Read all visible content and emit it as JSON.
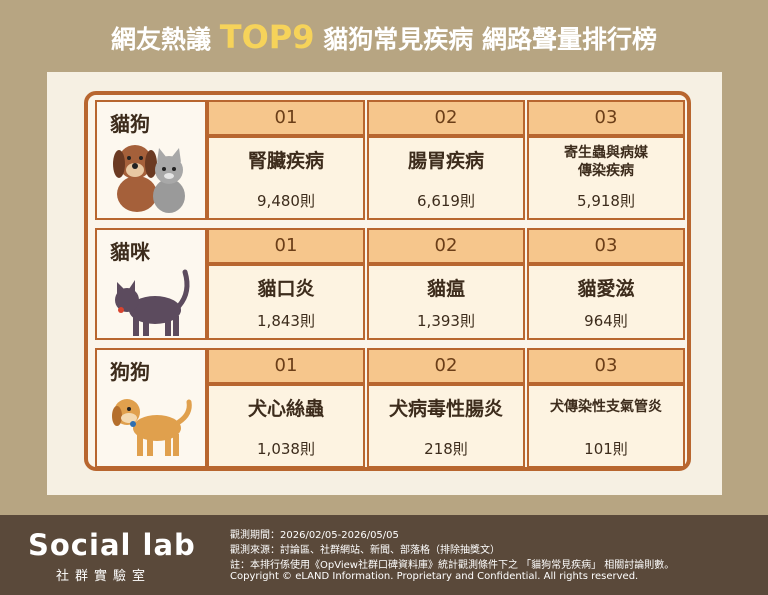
{
  "header": {
    "title_prefix": "網友熱議",
    "title_highlight": "TOP9",
    "title_suffix": "貓狗常見疾病 網路聲量排行榜"
  },
  "table": {
    "groups": [
      {
        "label": "貓狗",
        "items": [
          {
            "rank": "01",
            "disease": "腎臟疾病",
            "count": "9,480則"
          },
          {
            "rank": "02",
            "disease": "腸胃疾病",
            "count": "6,619則"
          },
          {
            "rank": "03",
            "disease": "寄生蟲與病媒\n傳染疾病",
            "count": "5,918則"
          }
        ]
      },
      {
        "label": "貓咪",
        "items": [
          {
            "rank": "01",
            "disease": "貓口炎",
            "count": "1,843則"
          },
          {
            "rank": "02",
            "disease": "貓瘟",
            "count": "1,393則"
          },
          {
            "rank": "03",
            "disease": "貓愛滋",
            "count": "964則"
          }
        ]
      },
      {
        "label": "狗狗",
        "items": [
          {
            "rank": "01",
            "disease": "犬心絲蟲",
            "count": "1,038則"
          },
          {
            "rank": "02",
            "disease": "犬病毒性腸炎",
            "count": "218則"
          },
          {
            "rank": "03",
            "disease": "犬傳染性支氣管炎",
            "count": "101則"
          }
        ]
      }
    ]
  },
  "footer": {
    "logo": "Social lab",
    "logo_sub": "社群實驗室",
    "lines": [
      "觀測期間：2026/02/05-2026/05/05",
      "觀測來源：討論區、社群網站、新聞、部落格（排除抽獎文）",
      "註：本排行係使用《OpView社群口碑資料庫》統計觀測條件下之 「貓狗常見疾病」 相關討論則數。",
      "Copyright © eLAND Information. Proprietary and Confidential. All rights reserved."
    ]
  }
}
